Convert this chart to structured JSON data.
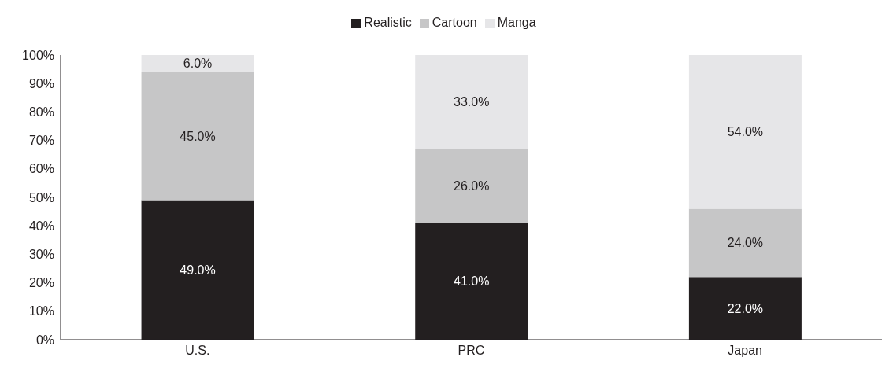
{
  "chart_data": {
    "type": "bar",
    "stacked": true,
    "categories": [
      "U.S.",
      "PRC",
      "Japan"
    ],
    "series": [
      {
        "name": "Realistic",
        "color": "#231f20",
        "values": [
          49,
          41,
          22
        ],
        "value_labels": [
          "49.0%",
          "41.0%",
          "22.0%"
        ]
      },
      {
        "name": "Cartoon",
        "color": "#c6c6c7",
        "values": [
          45,
          26,
          24
        ],
        "value_labels": [
          "45.0%",
          "26.0%",
          "24.0%"
        ]
      },
      {
        "name": "Manga",
        "color": "#e6e6e8",
        "values": [
          6,
          33,
          54
        ],
        "value_labels": [
          "6.0%",
          "33.0%",
          "54.0%"
        ]
      }
    ],
    "ylim": [
      0,
      100
    ],
    "yticks": [
      {
        "value": 0,
        "label": "0%"
      },
      {
        "value": 10,
        "label": "10%"
      },
      {
        "value": 20,
        "label": "20%"
      },
      {
        "value": 30,
        "label": "30%"
      },
      {
        "value": 40,
        "label": "40%"
      },
      {
        "value": 50,
        "label": "50%"
      },
      {
        "value": 60,
        "label": "60%"
      },
      {
        "value": 70,
        "label": "70%"
      },
      {
        "value": 80,
        "label": "80%"
      },
      {
        "value": 90,
        "label": "90%"
      },
      {
        "value": 100,
        "label": "100%"
      }
    ],
    "grid": false,
    "legend": "top"
  }
}
